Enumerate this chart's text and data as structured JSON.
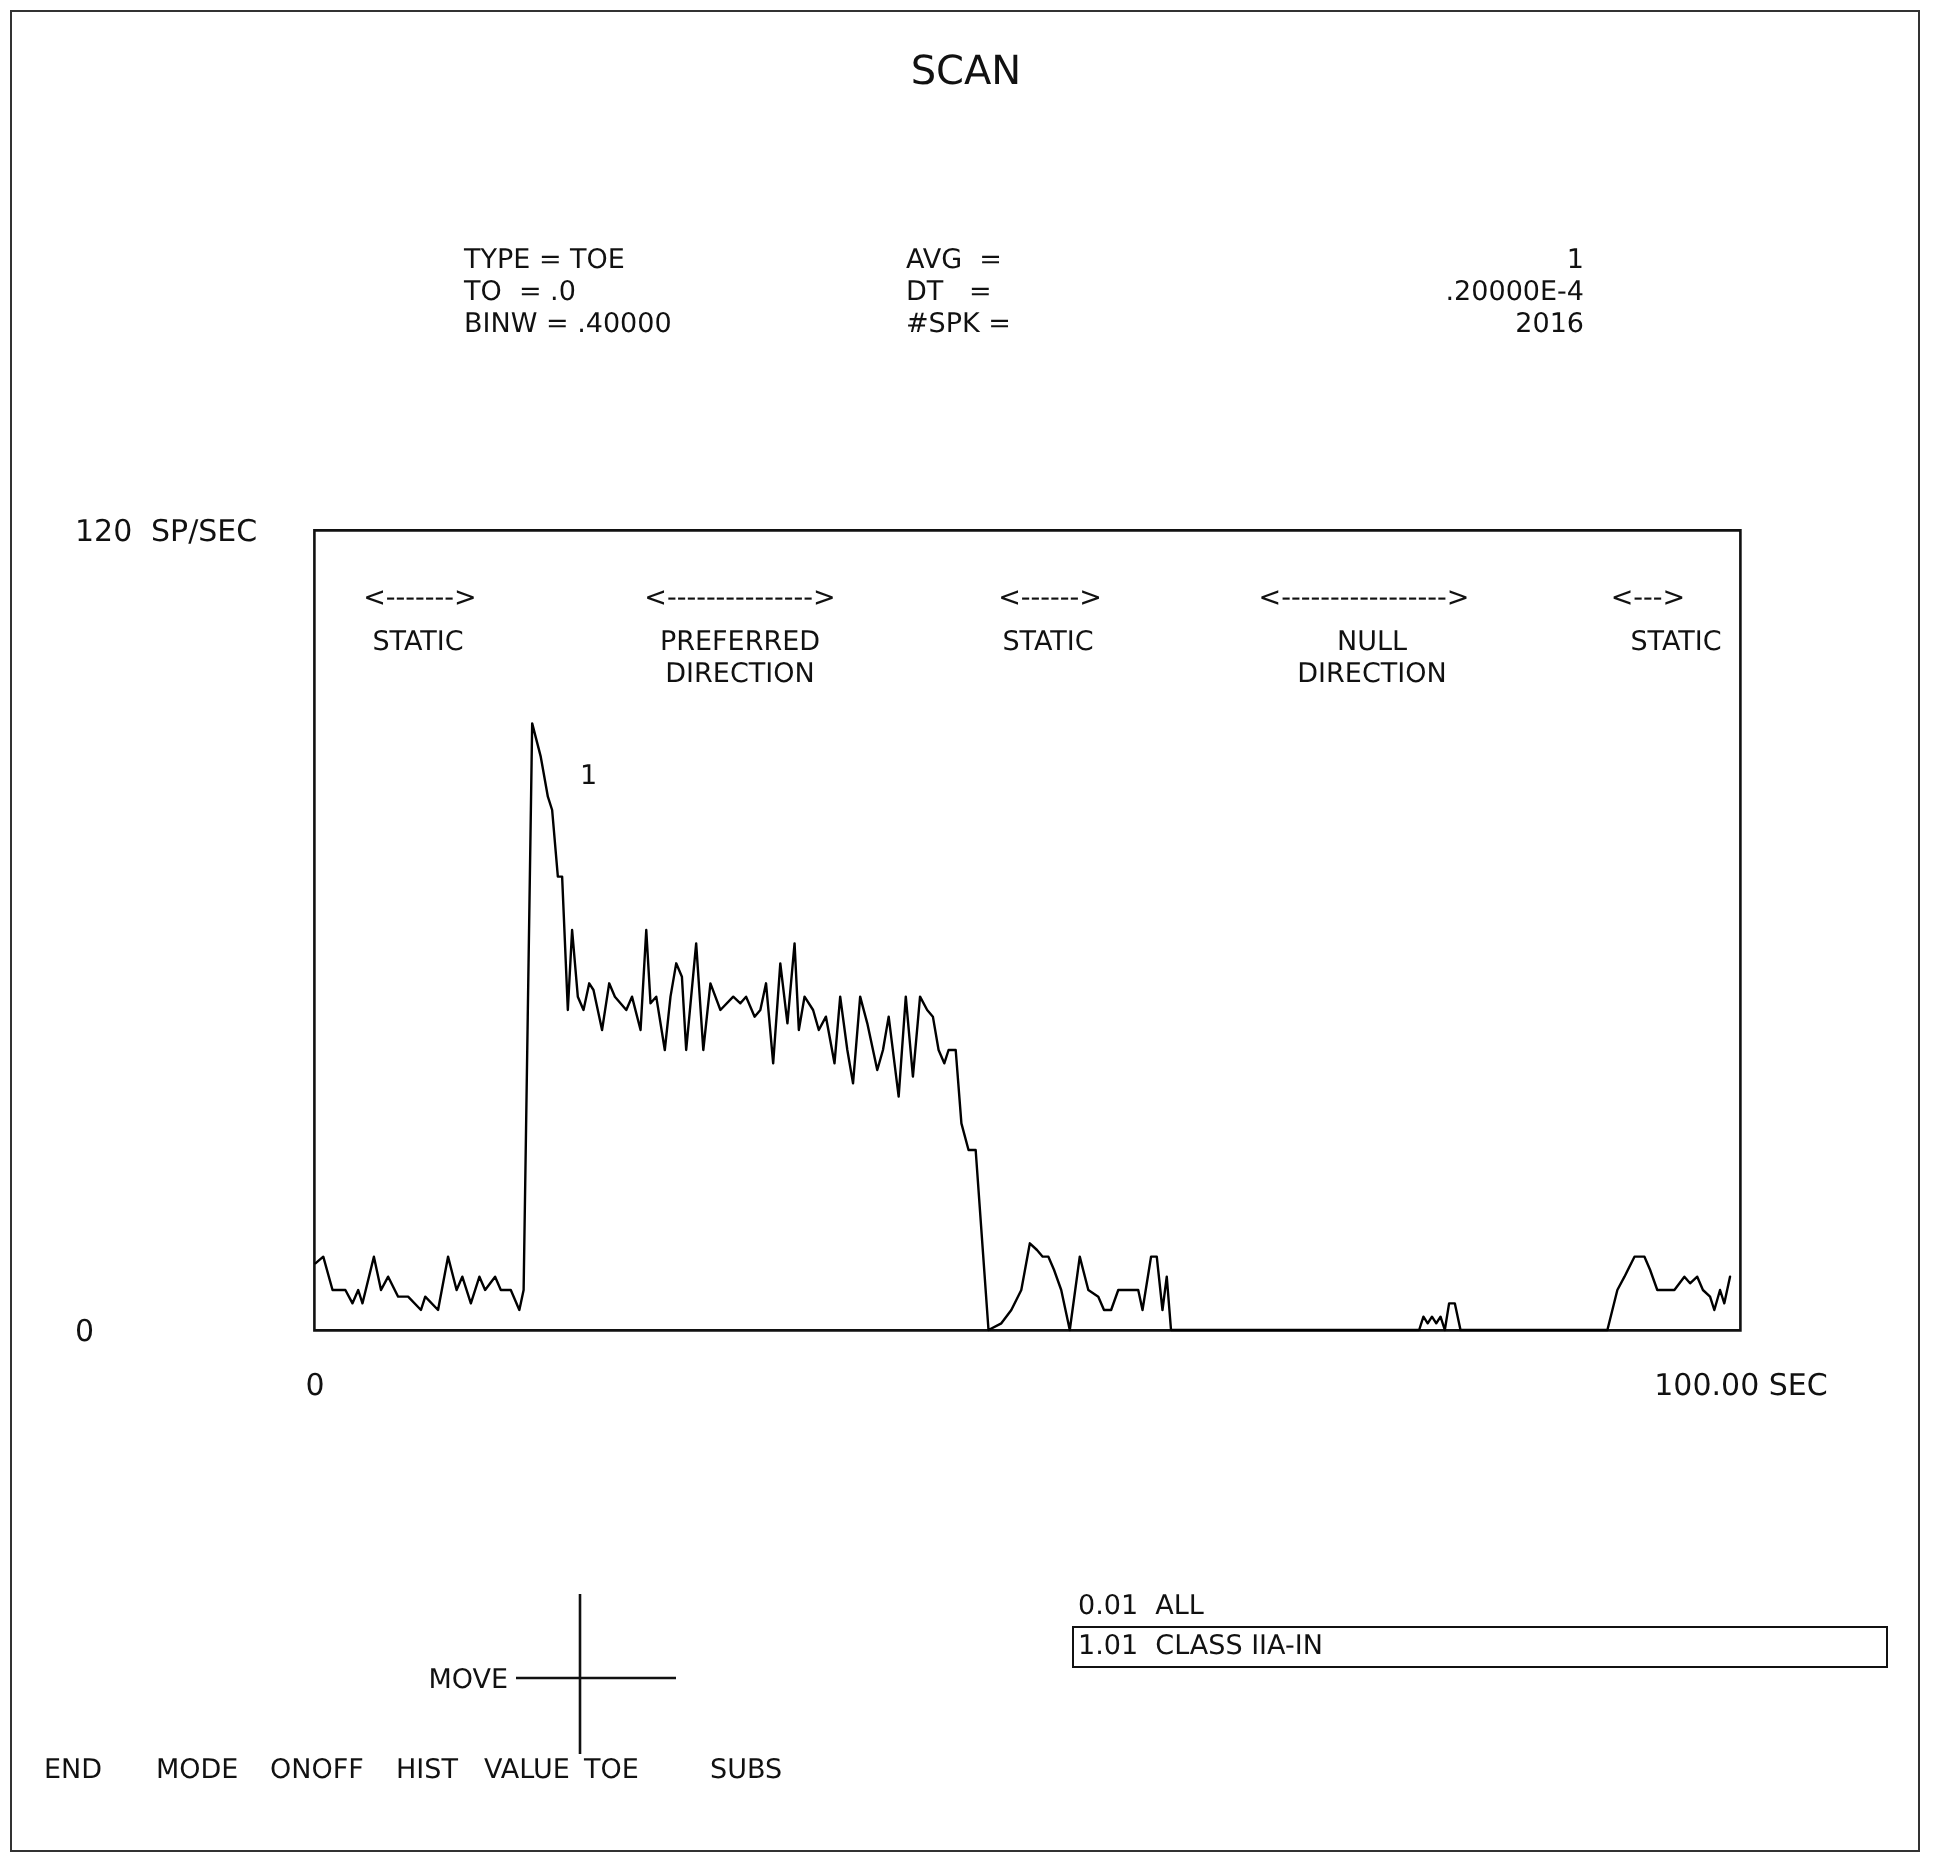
{
  "chart_data": {
    "type": "line",
    "title": "SCAN",
    "x": [
      0.1,
      0.65,
      1.3,
      2.2,
      2.7,
      3.1,
      3.4,
      4.2,
      4.7,
      5.2,
      5.9,
      6.6,
      7.5,
      7.8,
      8.7,
      9.4,
      10.0,
      10.4,
      11.0,
      11.6,
      12.0,
      12.7,
      13.1,
      13.8,
      14.4,
      14.7,
      15.3,
      15.9,
      16.4,
      16.7,
      17.1,
      17.4,
      17.8,
      18.1,
      18.5,
      18.9,
      19.3,
      19.6,
      20.2,
      20.7,
      21.1,
      21.9,
      22.3,
      22.9,
      23.3,
      23.6,
      24.0,
      24.6,
      25.0,
      25.4,
      25.8,
      26.1,
      26.8,
      27.3,
      27.8,
      28.5,
      29.4,
      29.9,
      30.3,
      30.9,
      31.3,
      31.7,
      32.2,
      32.7,
      33.2,
      33.7,
      34.0,
      34.4,
      35.0,
      35.4,
      35.9,
      36.5,
      36.9,
      37.4,
      37.8,
      38.3,
      38.8,
      39.2,
      39.5,
      39.9,
      40.3,
      41.0,
      41.5,
      42.0,
      42.5,
      43.0,
      43.4,
      43.8,
      44.2,
      44.5,
      45.0,
      45.4,
      45.9,
      46.4,
      47.3,
      48.2,
      48.9,
      49.6,
      50.2,
      50.7,
      51.1,
      51.5,
      51.9,
      52.4,
      53.0,
      53.7,
      54.3,
      55.0,
      55.4,
      55.9,
      56.4,
      57.8,
      58.1,
      58.7,
      59.1,
      59.5,
      59.8,
      60.1,
      77.5,
      77.8,
      78.1,
      78.4,
      78.7,
      79.0,
      79.3,
      79.6,
      80.0,
      80.4,
      90.7,
      91.4,
      91.9,
      92.6,
      93.3,
      93.7,
      94.2,
      95.4,
      96.1,
      96.5,
      97.0,
      97.4,
      97.9,
      98.2,
      98.6,
      98.9,
      99.3
    ],
    "series": [
      {
        "color": "#000000",
        "values": [
          10,
          11,
          6,
          6,
          4,
          6,
          4,
          11,
          6,
          8,
          5,
          5,
          3,
          5,
          3,
          11,
          6,
          8,
          4,
          8,
          6,
          8,
          6,
          6,
          3,
          6,
          91,
          86,
          80,
          78,
          68,
          68,
          48,
          60,
          50,
          48,
          52,
          51,
          45,
          52,
          50,
          48,
          50,
          45,
          60,
          49,
          50,
          42,
          50,
          55,
          53,
          42,
          58,
          42,
          52,
          48,
          50,
          49,
          50,
          47,
          48,
          52,
          40,
          55,
          46,
          58,
          45,
          50,
          48,
          45,
          47,
          40,
          50,
          42,
          37,
          50,
          46,
          42,
          39,
          42,
          47,
          35,
          50,
          38,
          50,
          48,
          47,
          42,
          40,
          42,
          42,
          31,
          27,
          27,
          0,
          1,
          3,
          6,
          13,
          12,
          11,
          11,
          9,
          6,
          0,
          11,
          6,
          5,
          3,
          3,
          6,
          6,
          3,
          11,
          11,
          3,
          8,
          0,
          0,
          2,
          1,
          2,
          1,
          2,
          0,
          4,
          4,
          0,
          0,
          6,
          8,
          11,
          11,
          9,
          6,
          6,
          8,
          7,
          8,
          6,
          5,
          3,
          6,
          4,
          8
        ]
      }
    ],
    "xlim": [
      0,
      100
    ],
    "xticks": [
      0,
      {
        "value": 100,
        "label": "100.00 SEC"
      }
    ],
    "ylim": [
      0,
      120
    ],
    "yticks": [
      0,
      120
    ],
    "ylabel": "SP/SEC",
    "grid": false,
    "marker": "none",
    "line_style": "solid",
    "annotations": [
      "1",
      "<------->",
      "<--------------->",
      "<------>",
      "<----------------->",
      "<--->",
      "STATIC",
      "PREFERRED\nDIRECTION",
      "STATIC",
      "NULL\nDIRECTION",
      "STATIC",
      "TYPE = TOE",
      "TO  = .0",
      "BINW = .40000",
      "AVG  =",
      "DT   =",
      "#SPK =",
      "1",
      ".20000E-4",
      "2016",
      "0.01  ALL",
      "1.01  CLASS IIA-IN",
      "MOVE",
      "END",
      "MODE",
      "ONOFF",
      "HIST",
      "VALUE",
      "TOE",
      "SUBS"
    ]
  }
}
